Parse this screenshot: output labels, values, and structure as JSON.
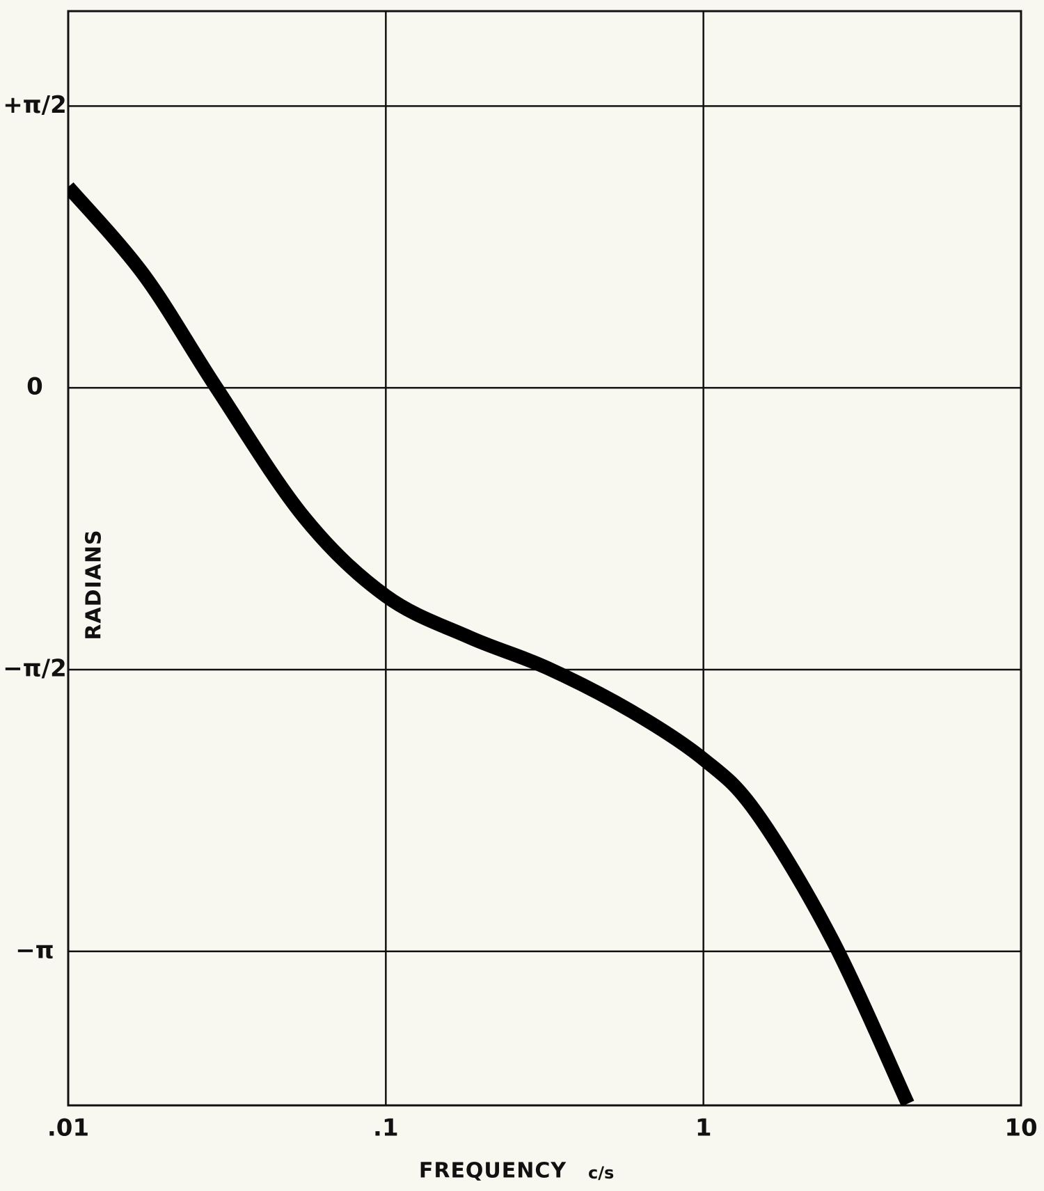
{
  "chart_data": {
    "type": "line",
    "xlabel": "FREQUENCY",
    "xunit": "c/s",
    "ylabel": "RADIANS",
    "xscale": "log",
    "grid": true,
    "xlim": [
      0.01,
      10
    ],
    "xticks": [
      {
        "value": 0.01,
        "label": ".01"
      },
      {
        "value": 0.1,
        "label": ".1"
      },
      1,
      10
    ],
    "ylim": [
      -4,
      2.1
    ],
    "yticks": [
      {
        "value": 1.5708,
        "label": "+π/2"
      },
      0,
      {
        "value": -1.5708,
        "label": "−π/2"
      },
      {
        "value": -3.1416,
        "label": "−π"
      }
    ],
    "series": [
      {
        "color": "#000000",
        "x": [
          0.01,
          0.0173,
          0.0293,
          0.0552,
          0.1,
          0.183,
          0.321,
          0.589,
          1,
          1.47,
          2.55,
          4.4
        ],
        "values": [
          1.12,
          0.63,
          0,
          -0.72,
          -1.16,
          -1.39,
          -1.56,
          -1.8,
          -2.07,
          -2.37,
          -3.08,
          -3.99
        ]
      }
    ]
  }
}
